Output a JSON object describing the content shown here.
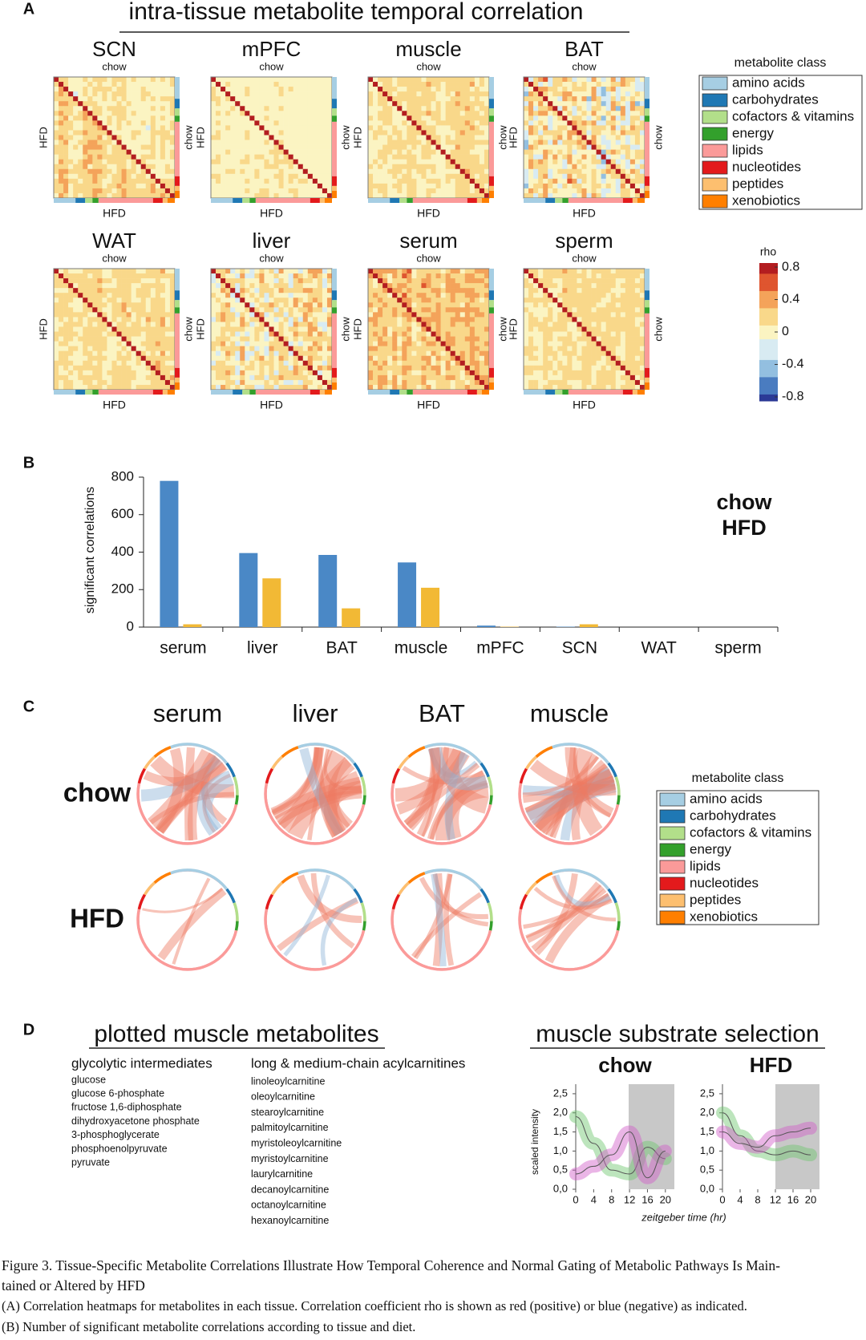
{
  "panel_a": {
    "label": "A",
    "title": "intra-tissue metabolite temporal correlation",
    "tissues": [
      "SCN",
      "mPFC",
      "muscle",
      "BAT",
      "WAT",
      "liver",
      "serum",
      "sperm"
    ],
    "diet_labels": [
      "chow",
      "HFD"
    ],
    "legend": {
      "title": "metabolite class",
      "items": [
        {
          "label": "amino acids",
          "color": "#a6cee3"
        },
        {
          "label": "carbohydrates",
          "color": "#1f78b4"
        },
        {
          "label": "cofactors & vitamins",
          "color": "#b2df8a"
        },
        {
          "label": "energy",
          "color": "#33a02c"
        },
        {
          "label": "lipids",
          "color": "#fb9a99"
        },
        {
          "label": "nucleotides",
          "color": "#e31a1c"
        },
        {
          "label": "peptides",
          "color": "#fdbf6f"
        },
        {
          "label": "xenobiotics",
          "color": "#ff7f00"
        }
      ]
    },
    "colorbar": {
      "title": "rho",
      "lim": [
        -0.85,
        0.85
      ],
      "ticks": [
        0.8,
        0.4,
        0,
        -0.4,
        -0.8
      ]
    }
  },
  "panel_b": {
    "label": "B"
  },
  "chart_data": [
    {
      "type": "bar",
      "ylabel": "significant correlations",
      "categories": [
        "serum",
        "liver",
        "BAT",
        "muscle",
        "mPFC",
        "SCN",
        "WAT",
        "sperm"
      ],
      "series": [
        {
          "name": "chow",
          "color": "#4a88c6",
          "values": [
            780,
            395,
            385,
            345,
            8,
            2,
            0,
            0
          ]
        },
        {
          "name": "HFD",
          "color": "#f2b935",
          "values": [
            15,
            260,
            100,
            210,
            2,
            15,
            0,
            0
          ]
        }
      ],
      "ylim": [
        0,
        800
      ],
      "yticks": [
        0,
        200,
        400,
        600,
        800
      ],
      "legend": "upper right"
    },
    {
      "type": "line",
      "title": "chow",
      "title_color": "#3d7ab8",
      "ylabel": "scaled intensity",
      "x": [
        0,
        4,
        8,
        12,
        16,
        20
      ],
      "series": [
        {
          "color": "#6cc56c",
          "values": [
            1.9,
            1.2,
            0.5,
            0.4,
            1.1,
            0.8
          ]
        },
        {
          "color": "#d05ac8",
          "values": [
            0.4,
            0.6,
            0.9,
            1.5,
            0.3,
            1.0
          ]
        }
      ],
      "xlim": [
        0,
        22
      ],
      "xticks": [
        0,
        4,
        8,
        12,
        16,
        20
      ],
      "ylim": [
        0,
        2.75
      ],
      "yticks": [
        {
          "value": 0,
          "label": "0,0"
        },
        {
          "value": 0.5,
          "label": "0,5"
        },
        {
          "value": 1,
          "label": "1,0"
        },
        {
          "value": 1.5,
          "label": "1,5"
        },
        {
          "value": 2,
          "label": "2,0"
        },
        {
          "value": 2.5,
          "label": "2,5"
        }
      ]
    },
    {
      "type": "line",
      "title": "HFD",
      "title_color": "#f0b432",
      "x": [
        0,
        4,
        8,
        12,
        16,
        20
      ],
      "series": [
        {
          "color": "#6cc56c",
          "values": [
            2.0,
            1.4,
            1.0,
            0.9,
            1.0,
            0.9
          ]
        },
        {
          "color": "#d05ac8",
          "values": [
            1.5,
            1.2,
            1.1,
            1.4,
            1.5,
            1.6
          ]
        }
      ],
      "xlim": [
        0,
        22
      ],
      "xticks": [
        0,
        4,
        8,
        12,
        16,
        20
      ],
      "ylim": [
        0,
        2.75
      ],
      "yticks": [
        {
          "value": 0,
          "label": "0,0"
        },
        {
          "value": 0.5,
          "label": "0,5"
        },
        {
          "value": 1,
          "label": "1,0"
        },
        {
          "value": 1.5,
          "label": "1,5"
        },
        {
          "value": 2,
          "label": "2,0"
        },
        {
          "value": 2.5,
          "label": "2,5"
        }
      ]
    }
  ],
  "panel_c": {
    "label": "C",
    "tissues": [
      "serum",
      "liver",
      "BAT",
      "muscle"
    ],
    "rows": [
      "chow",
      "HFD"
    ],
    "legend": {
      "title": "metabolite class",
      "items": [
        {
          "label": "amino acids",
          "color": "#a6cee3"
        },
        {
          "label": "carbohydrates",
          "color": "#1f78b4"
        },
        {
          "label": "cofactors & vitamins",
          "color": "#b2df8a"
        },
        {
          "label": "energy",
          "color": "#33a02c"
        },
        {
          "label": "lipids",
          "color": "#fb9a99"
        },
        {
          "label": "nucleotides",
          "color": "#e31a1c"
        },
        {
          "label": "peptides",
          "color": "#fdbf6f"
        },
        {
          "label": "xenobiotics",
          "color": "#ff7f00"
        }
      ]
    }
  },
  "panel_d": {
    "label": "D",
    "left_title": "plotted muscle metabolites",
    "right_title": "muscle substrate selection",
    "glycolytic": {
      "header": "glycolytic intermediates",
      "items": [
        "glucose",
        "glucose 6-phosphate",
        "fructose 1,6-diphosphate",
        "dihydroxyacetone phosphate",
        "3-phosphoglycerate",
        "phosphoenolpyruvate",
        "pyruvate"
      ]
    },
    "acylcarnitines": {
      "header": "long & medium-chain acylcarnitines",
      "items": [
        "linoleoylcarnitine",
        "oleoylcarnitine",
        "stearoylcarnitine",
        "palmitoylcarnitine",
        "myristoleoylcarnitine",
        "myristoylcarnitine",
        "laurylcarnitine",
        "decanoylcarnitine",
        "octanoylcarnitine",
        "hexanoylcarnitine"
      ]
    },
    "x_label": "zeitgeber time (hr)"
  },
  "caption": {
    "title_lines": [
      "Figure 3.  Tissue-Specific Metabolite Correlations Illustrate How Temporal Coherence and Normal Gating of Metabolic Pathways Is Main-",
      "tained or Altered by HFD"
    ],
    "lines": [
      "(A) Correlation heatmaps for metabolites in each tissue. Correlation coefficient rho is shown as red (positive) or blue (negative) as indicated.",
      "(B) Number of significant metabolite correlations according to tissue and diet."
    ]
  }
}
